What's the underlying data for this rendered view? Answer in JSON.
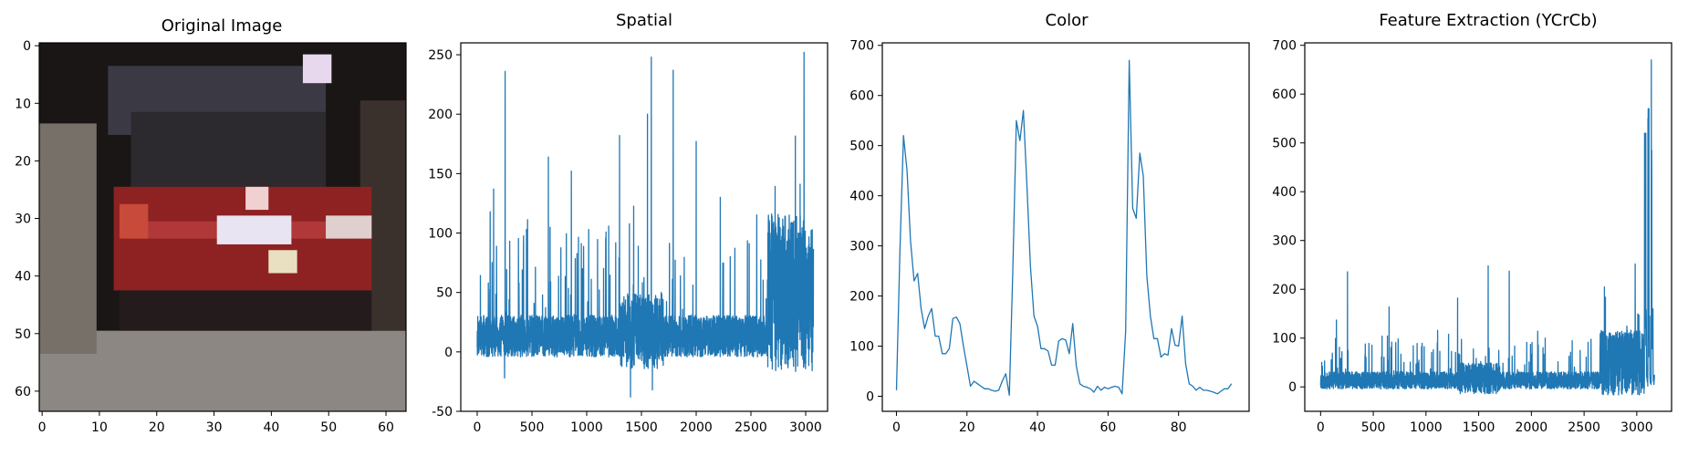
{
  "figure_titles": [
    "Original Image",
    "Spatial",
    "Color",
    "Feature Extraction (YCrCb)"
  ],
  "chart_data": [
    {
      "type": "image",
      "title": "Original Image",
      "description_note": "64x64 pixel thumbnail of a red car viewed from the rear",
      "xlim": [
        0,
        64
      ],
      "ylim": [
        64,
        0
      ],
      "xticks": [
        0,
        10,
        20,
        30,
        40,
        50,
        60
      ],
      "yticks": [
        0,
        10,
        20,
        30,
        40,
        50,
        60
      ],
      "colors": {
        "body_red": "#8e2222",
        "dark": "#1a1616",
        "road": "#8d8784",
        "window": "#2c2a2e",
        "plate": "#e9e4f2",
        "left_bg": "#777068"
      }
    },
    {
      "type": "line",
      "title": "Spatial",
      "xlim": [
        -150,
        3200
      ],
      "ylim": [
        -50,
        260
      ],
      "xticks": [
        0,
        500,
        1000,
        1500,
        2000,
        2500,
        3000
      ],
      "yticks": [
        -50,
        0,
        50,
        100,
        150,
        200,
        250
      ],
      "n_points": 3072,
      "peaks": [
        {
          "x": 150,
          "y": 137
        },
        {
          "x": 255,
          "y": 236
        },
        {
          "x": 450,
          "y": 103
        },
        {
          "x": 650,
          "y": 164
        },
        {
          "x": 860,
          "y": 152
        },
        {
          "x": 1300,
          "y": 182
        },
        {
          "x": 1555,
          "y": 200
        },
        {
          "x": 1590,
          "y": 248
        },
        {
          "x": 1790,
          "y": 237
        },
        {
          "x": 2000,
          "y": 177
        },
        {
          "x": 2220,
          "y": 130
        },
        {
          "x": 2985,
          "y": 252
        }
      ],
      "troughs": [
        {
          "x": 1400,
          "y": -38
        },
        {
          "x": 1600,
          "y": -32
        },
        {
          "x": 250,
          "y": -22
        }
      ],
      "color": "#1f77b4"
    },
    {
      "type": "line",
      "title": "Color",
      "xlim": [
        -4,
        100
      ],
      "ylim": [
        -30,
        705
      ],
      "xticks": [
        0,
        20,
        40,
        60,
        80
      ],
      "yticks": [
        0,
        100,
        200,
        300,
        400,
        500,
        600,
        700
      ],
      "x": [
        0,
        1,
        2,
        3,
        4,
        5,
        6,
        7,
        8,
        9,
        10,
        11,
        12,
        13,
        14,
        15,
        16,
        17,
        18,
        19,
        20,
        21,
        22,
        23,
        24,
        25,
        26,
        27,
        28,
        29,
        30,
        31,
        32,
        33,
        34,
        35,
        36,
        37,
        38,
        39,
        40,
        41,
        42,
        43,
        44,
        45,
        46,
        47,
        48,
        49,
        50,
        51,
        52,
        53,
        54,
        55,
        56,
        57,
        58,
        59,
        60,
        61,
        62,
        63,
        64,
        65,
        66,
        67,
        68,
        69,
        70,
        71,
        72,
        73,
        74,
        75,
        76,
        77,
        78,
        79,
        80,
        81,
        82,
        83,
        84,
        85,
        86,
        87,
        88,
        89,
        90,
        91,
        92,
        93,
        94,
        95
      ],
      "y": [
        12,
        290,
        520,
        450,
        310,
        230,
        245,
        175,
        135,
        160,
        175,
        120,
        120,
        85,
        85,
        95,
        155,
        158,
        145,
        100,
        60,
        20,
        30,
        25,
        20,
        15,
        15,
        12,
        10,
        12,
        30,
        45,
        2,
        250,
        550,
        510,
        570,
        420,
        260,
        160,
        140,
        95,
        95,
        90,
        62,
        62,
        110,
        115,
        112,
        85,
        145,
        60,
        25,
        20,
        18,
        15,
        8,
        20,
        12,
        18,
        15,
        18,
        20,
        18,
        5,
        130,
        670,
        375,
        355,
        485,
        440,
        240,
        160,
        115,
        115,
        78,
        85,
        82,
        135,
        102,
        100,
        160,
        65,
        25,
        20,
        12,
        18,
        12,
        12,
        10,
        8,
        5,
        10,
        15,
        15,
        25
      ],
      "color": "#1f77b4"
    },
    {
      "type": "line",
      "title": "Feature Extraction (YCrCb)",
      "xlim": [
        -150,
        3330
      ],
      "ylim": [
        -50,
        705
      ],
      "xticks": [
        0,
        500,
        1000,
        1500,
        2000,
        2500,
        3000
      ],
      "yticks": [
        0,
        100,
        200,
        300,
        400,
        500,
        600,
        700
      ],
      "n_points": 3168,
      "peaks": [
        {
          "x": 150,
          "y": 137
        },
        {
          "x": 255,
          "y": 236
        },
        {
          "x": 650,
          "y": 164
        },
        {
          "x": 1300,
          "y": 182
        },
        {
          "x": 1590,
          "y": 248
        },
        {
          "x": 1790,
          "y": 237
        },
        {
          "x": 2985,
          "y": 252
        },
        {
          "x": 3085,
          "y": 520
        },
        {
          "x": 3115,
          "y": 570
        },
        {
          "x": 3138,
          "y": 670
        }
      ],
      "color": "#1f77b4"
    }
  ]
}
